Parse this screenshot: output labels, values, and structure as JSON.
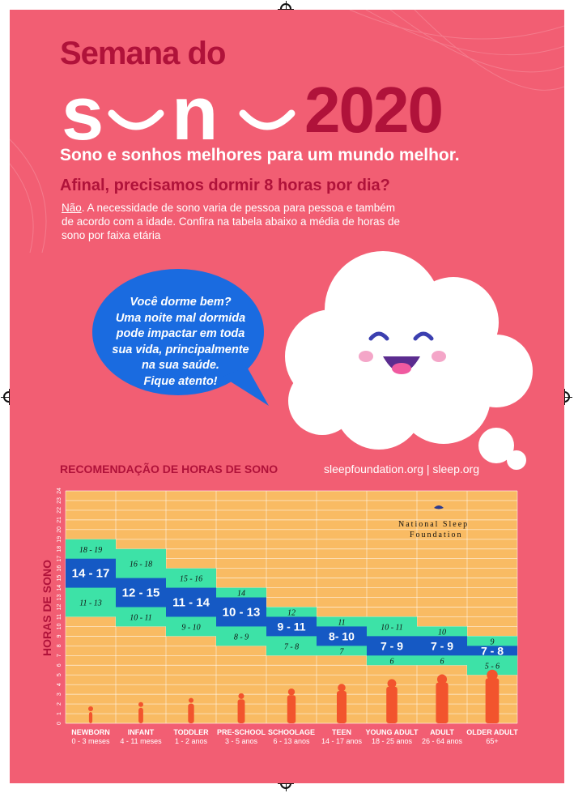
{
  "header": {
    "line1": "Semana do",
    "word": "sono",
    "year": "2020",
    "tagline": "Sono e sonhos melhores para um mundo melhor.",
    "question": "Afinal, precisamos dormir 8 horas por dia?",
    "answer_word": "Não",
    "paragraph": ". A necessidade de sono varia de pessoa para pessoa e também de acordo com a idade. Confira na tabela abaixo a média de horas de sono por faixa etária"
  },
  "bubble": {
    "lines": [
      "Você dorme bem?",
      "Uma noite mal dormida",
      "pode impactar em toda",
      "sua vida, principalmente",
      "na sua saúde.",
      "Fique atento!"
    ]
  },
  "chart_section": {
    "title": "RECOMENDAÇÃO DE HORAS DE SONO",
    "links": "sleepfoundation.org | sleep.org",
    "logo_line1": "National Sleep",
    "logo_line2": "Foundation"
  },
  "colors": {
    "background": "#f25e73",
    "accent_dark": "#b0123a",
    "chart_bg": "#f9bb63",
    "range_acceptable": "#3de2a7",
    "range_recommended": "#1559c4"
  },
  "chart_data": {
    "type": "bar",
    "ylabel": "HORAS DE SONO",
    "ylim": [
      0,
      24
    ],
    "yticks": [
      0,
      1,
      2,
      3,
      4,
      5,
      6,
      7,
      8,
      9,
      10,
      11,
      12,
      13,
      14,
      15,
      16,
      17,
      18,
      19,
      20,
      21,
      22,
      23,
      24
    ],
    "grid": true,
    "categories": [
      {
        "name": "NEWBORN",
        "ages": "0 - 3  meses",
        "min": 11,
        "rec_low": 14,
        "rec_high": 17,
        "max": 19,
        "rec_label": "14 - 17",
        "top_label": "18 - 19",
        "bottom_label": "11 - 13"
      },
      {
        "name": "INFANT",
        "ages": "4 - 11 meses",
        "min": 10,
        "rec_low": 12,
        "rec_high": 15,
        "max": 18,
        "rec_label": "12 - 15",
        "top_label": "16 - 18",
        "bottom_label": "10 - 11"
      },
      {
        "name": "TODDLER",
        "ages": "1 - 2 anos",
        "min": 9,
        "rec_low": 11,
        "rec_high": 14,
        "max": 16,
        "rec_label": "11 - 14",
        "top_label": "15 - 16",
        "bottom_label": "9 - 10"
      },
      {
        "name": "PRE-SCHOOL",
        "ages": "3 - 5 anos",
        "min": 8,
        "rec_low": 10,
        "rec_high": 13,
        "max": 14,
        "rec_label": "10 - 13",
        "top_label": "14",
        "bottom_label": "8 - 9"
      },
      {
        "name": "SCHOOLAGE",
        "ages": "6 - 13 anos",
        "min": 7,
        "rec_low": 9,
        "rec_high": 11,
        "max": 12,
        "rec_label": "9 - 11",
        "top_label": "12",
        "bottom_label": "7 - 8"
      },
      {
        "name": "TEEN",
        "ages": "14 - 17 anos",
        "min": 7,
        "rec_low": 8,
        "rec_high": 10,
        "max": 11,
        "rec_label": "8- 10",
        "top_label": "11",
        "bottom_label": "7"
      },
      {
        "name": "YOUNG ADULT",
        "ages": "18 - 25 anos",
        "min": 6,
        "rec_low": 7,
        "rec_high": 9,
        "max": 11,
        "rec_label": "7 - 9",
        "top_label": "10 - 11",
        "bottom_label": "6"
      },
      {
        "name": "ADULT",
        "ages": "26 - 64 anos",
        "min": 6,
        "rec_low": 7,
        "rec_high": 9,
        "max": 10,
        "rec_label": "7 - 9",
        "top_label": "10",
        "bottom_label": "6"
      },
      {
        "name": "OLDER ADULT",
        "ages": "65+",
        "min": 5,
        "rec_low": 7,
        "rec_high": 8,
        "max": 9,
        "rec_label": "7 - 8",
        "top_label": "9",
        "bottom_label": "5 - 6"
      }
    ]
  }
}
